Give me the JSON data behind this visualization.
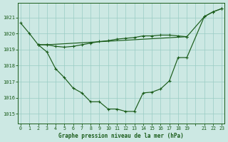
{
  "background_color": "#cce8e3",
  "grid_color": "#99ccc4",
  "line_color": "#1a5c1a",
  "title": "Graphe pression niveau de la mer (hPa)",
  "ylim": [
    1014.4,
    1021.9
  ],
  "yticks": [
    1015,
    1016,
    1017,
    1018,
    1019,
    1020,
    1021
  ],
  "xlim": [
    -0.3,
    23.3
  ],
  "series1_x": [
    0,
    1,
    2,
    3,
    4,
    5,
    6,
    7,
    8,
    9,
    10,
    11,
    12,
    13,
    14,
    15,
    16,
    17,
    18,
    19,
    21,
    22,
    23
  ],
  "series1_y": [
    1020.65,
    1020.0,
    1019.3,
    1018.85,
    1017.8,
    1017.25,
    1016.6,
    1016.3,
    1015.75,
    1015.75,
    1015.3,
    1015.3,
    1015.15,
    1015.15,
    1016.3,
    1016.35,
    1016.55,
    1017.05,
    1018.5,
    1018.5,
    1021.05,
    1021.35,
    1021.55
  ],
  "series2_x": [
    2,
    3,
    4,
    5,
    6,
    7,
    8,
    9,
    10,
    11,
    12,
    13,
    14,
    15,
    16,
    17,
    18,
    19
  ],
  "series2_y": [
    1019.3,
    1019.3,
    1019.2,
    1019.15,
    1019.2,
    1019.3,
    1019.4,
    1019.5,
    1019.55,
    1019.65,
    1019.7,
    1019.75,
    1019.85,
    1019.85,
    1019.9,
    1019.9,
    1019.85,
    1019.8
  ],
  "series3_x": [
    2,
    3,
    19,
    21,
    22,
    23
  ],
  "series3_y": [
    1019.3,
    1019.3,
    1019.8,
    1021.05,
    1021.35,
    1021.55
  ]
}
